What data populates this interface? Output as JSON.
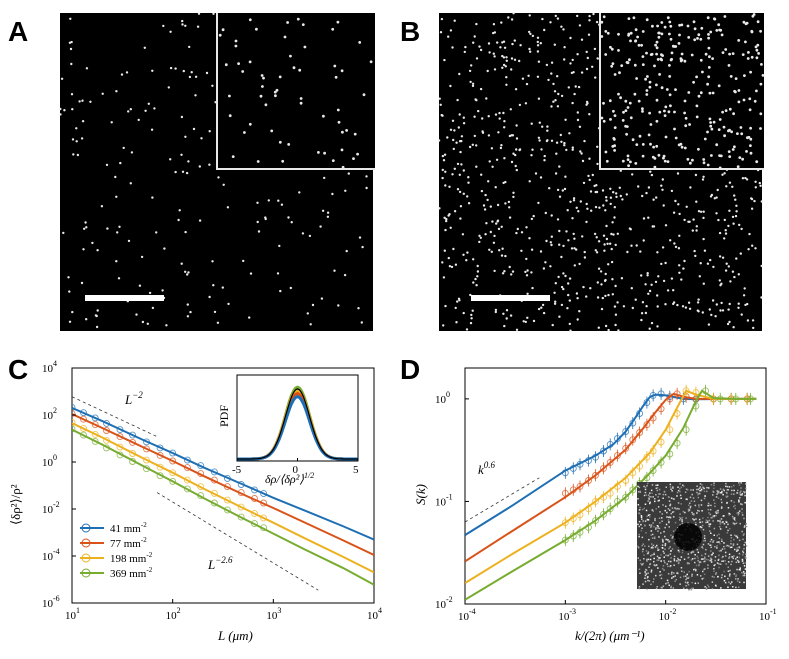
{
  "panels": {
    "A": {
      "label": "A",
      "density_seed": 17,
      "dot_count": 230,
      "inset_dot_count": 60
    },
    "B": {
      "label": "B",
      "density_seed": 91,
      "dot_count": 950,
      "inset_dot_count": 300
    },
    "C": {
      "label": "C"
    },
    "D": {
      "label": "D"
    }
  },
  "colors": {
    "blue": "#1f6fb4",
    "red": "#d95319",
    "yellow": "#edb120",
    "green": "#77ac30"
  },
  "chart_data": [
    {
      "id": "C",
      "type": "line",
      "xscale": "log",
      "yscale": "log",
      "xlim": [
        10,
        10000
      ],
      "ylim": [
        1e-06,
        10000
      ],
      "xlabel": "L (μm)",
      "ylabel": "⟨δρ²⟩/ρ²",
      "xticks": [
        10,
        100,
        1000,
        10000
      ],
      "xtick_labels": [
        "10",
        "10",
        "10",
        "10"
      ],
      "xtick_exps": [
        "1",
        "2",
        "3",
        "4"
      ],
      "yticks": [
        1e-06,
        0.0001,
        0.01,
        1,
        100,
        10000
      ],
      "ytick_labels": [
        "10",
        "10",
        "10",
        "10",
        "10",
        "10"
      ],
      "ytick_exps": [
        "-6",
        "-4",
        "-2",
        "0",
        "2",
        "4"
      ],
      "annotations": [
        {
          "base": "L",
          "exp": "−2"
        },
        {
          "base": "L",
          "exp": "−2.6"
        }
      ],
      "guide_lines": [
        {
          "x": [
            10,
            70
          ],
          "y": [
            600,
            12
          ]
        },
        {
          "x": [
            70,
            2800
          ],
          "y": [
            0.05,
            3.5e-06
          ]
        }
      ],
      "legend": [
        "41 mm",
        "77 mm",
        "198 mm",
        "369 mm"
      ],
      "legend_exp": "-2",
      "legend_position": "bottom-left",
      "series": [
        {
          "name": "41 mm-2",
          "color_key": "blue",
          "x": [
            10,
            20,
            50,
            100,
            200,
            500,
            1000,
            2000,
            5000,
            10000
          ],
          "y": [
            200,
            55,
            9,
            2.4,
            0.6,
            0.11,
            0.03,
            0.009,
            0.0018,
            0.0005
          ],
          "marker_x": [
            10,
            13,
            17,
            22,
            30,
            40,
            55,
            75,
            100,
            140,
            190,
            260,
            350,
            480,
            650,
            800
          ],
          "marker_y": [
            210,
            125,
            75,
            44,
            24,
            14,
            7.2,
            4,
            2.4,
            1.2,
            0.7,
            0.38,
            0.2,
            0.11,
            0.065,
            0.045
          ]
        },
        {
          "name": "77 mm-2",
          "color_key": "red",
          "x": [
            10,
            20,
            50,
            100,
            200,
            500,
            1000,
            2000,
            5000,
            10000
          ],
          "y": [
            110,
            28,
            4.4,
            1.1,
            0.26,
            0.042,
            0.011,
            0.0028,
            0.00045,
            0.00011
          ],
          "marker_x": [
            10,
            13,
            17,
            22,
            30,
            40,
            55,
            75,
            100,
            140,
            190,
            260,
            350,
            480,
            650,
            800
          ],
          "marker_y": [
            115,
            66,
            39,
            22,
            12,
            6.8,
            3.6,
            1.9,
            1.1,
            0.58,
            0.32,
            0.17,
            0.09,
            0.05,
            0.028,
            0.018
          ]
        },
        {
          "name": "198 mm-2",
          "color_key": "yellow",
          "x": [
            10,
            20,
            50,
            100,
            200,
            500,
            1000,
            2000,
            5000,
            10000
          ],
          "y": [
            45,
            11,
            1.5,
            0.35,
            0.075,
            0.011,
            0.0026,
            0.0006,
            9e-05,
            2e-05
          ],
          "marker_x": [
            10,
            13,
            17,
            22,
            30,
            40,
            55,
            75,
            100,
            140,
            190,
            260,
            350,
            480,
            650,
            800
          ],
          "marker_y": [
            48,
            27,
            15,
            8.3,
            4.3,
            2.3,
            1.2,
            0.6,
            0.35,
            0.17,
            0.09,
            0.046,
            0.024,
            0.012,
            0.0065,
            0.0042
          ]
        },
        {
          "name": "369 mm-2",
          "color_key": "green",
          "x": [
            10,
            20,
            50,
            100,
            200,
            500,
            1000,
            2000,
            5000,
            10000
          ],
          "y": [
            24,
            5.5,
            0.7,
            0.15,
            0.03,
            0.004,
            0.0009,
            0.0002,
            3e-05,
            6e-06
          ],
          "marker_x": [
            10,
            13,
            17,
            22,
            30,
            40,
            55,
            75,
            100,
            140,
            190,
            260,
            350,
            480,
            650,
            800
          ],
          "marker_y": [
            25,
            14,
            7.5,
            4,
            2,
            1.05,
            0.52,
            0.26,
            0.15,
            0.072,
            0.037,
            0.018,
            0.0092,
            0.0045,
            0.0024,
            0.0016
          ]
        }
      ],
      "inset": {
        "type": "line",
        "ylabel": "PDF",
        "xlabel": "δρ/⟨δρ²⟩",
        "xlabel_exp": "1/2",
        "xlim": [
          -5,
          5
        ],
        "xticks": [
          -5,
          0,
          5
        ],
        "xtick_labels": [
          "-5",
          "0",
          "5"
        ]
      }
    },
    {
      "id": "D",
      "type": "line",
      "xscale": "log",
      "yscale": "log",
      "xlim": [
        0.0001,
        0.1
      ],
      "ylim": [
        0.01,
        2
      ],
      "xlabel": "k/(2π) (μm⁻¹)",
      "ylabel": "S(k)",
      "xticks": [
        0.0001,
        0.001,
        0.01,
        0.1
      ],
      "xtick_labels": [
        "10",
        "10",
        "10",
        "10"
      ],
      "xtick_exps": [
        "-4",
        "-3",
        "-2",
        "-1"
      ],
      "yticks": [
        0.01,
        0.1,
        1
      ],
      "ytick_labels": [
        "10",
        "10",
        "10"
      ],
      "ytick_exps": [
        "-2",
        "-1",
        "0"
      ],
      "annotations": [
        {
          "base": "k",
          "exp": "0.6"
        }
      ],
      "guide_lines": [
        {
          "x": [
            0.0001,
            0.00055
          ],
          "y": [
            0.063,
            0.17
          ]
        }
      ],
      "series": [
        {
          "name": "41 mm-2",
          "color_key": "blue",
          "x": [
            0.0001,
            0.0003,
            0.001,
            0.002,
            0.003,
            0.004,
            0.005,
            0.006,
            0.007,
            0.008,
            0.01,
            0.015,
            0.02,
            0.05,
            0.08
          ],
          "y": [
            0.047,
            0.092,
            0.2,
            0.28,
            0.36,
            0.48,
            0.66,
            0.86,
            1.05,
            1.1,
            1.08,
            1.0,
            0.99,
            1.0,
            1.0
          ],
          "marker_x": [
            0.001,
            0.0012,
            0.0014,
            0.0017,
            0.002,
            0.0024,
            0.0028,
            0.0033,
            0.004,
            0.0047,
            0.0055,
            0.0065,
            0.0075,
            0.009,
            0.011,
            0.015,
            0.02,
            0.03,
            0.045,
            0.065
          ],
          "marker_y": [
            0.19,
            0.21,
            0.23,
            0.25,
            0.27,
            0.31,
            0.36,
            0.41,
            0.48,
            0.58,
            0.72,
            0.92,
            1.08,
            1.12,
            1.05,
            1.0,
            0.99,
            1.0,
            1.0,
            1.0
          ]
        },
        {
          "name": "77 mm-2",
          "color_key": "red",
          "x": [
            0.0001,
            0.0003,
            0.001,
            0.002,
            0.004,
            0.006,
            0.008,
            0.01,
            0.012,
            0.015,
            0.02,
            0.05,
            0.08
          ],
          "y": [
            0.026,
            0.052,
            0.11,
            0.18,
            0.32,
            0.52,
            0.75,
            0.98,
            1.12,
            1.05,
            1.0,
            1.0,
            1.0
          ],
          "marker_x": [
            0.001,
            0.0012,
            0.0014,
            0.0017,
            0.002,
            0.0024,
            0.0028,
            0.0033,
            0.004,
            0.0047,
            0.0055,
            0.0065,
            0.0075,
            0.009,
            0.011,
            0.013,
            0.016,
            0.02,
            0.03,
            0.045,
            0.065
          ],
          "marker_y": [
            0.12,
            0.13,
            0.14,
            0.16,
            0.18,
            0.21,
            0.24,
            0.28,
            0.33,
            0.4,
            0.47,
            0.56,
            0.65,
            0.8,
            1.0,
            1.12,
            1.05,
            1.0,
            1.0,
            1.0,
            1.0
          ]
        },
        {
          "name": "198 mm-2",
          "color_key": "yellow",
          "x": [
            0.0001,
            0.0003,
            0.001,
            0.002,
            0.004,
            0.007,
            0.01,
            0.013,
            0.016,
            0.02,
            0.03,
            0.05,
            0.08
          ],
          "y": [
            0.016,
            0.031,
            0.062,
            0.1,
            0.17,
            0.3,
            0.5,
            0.82,
            1.2,
            1.1,
            1.0,
            1.0,
            1.0
          ],
          "marker_x": [
            0.001,
            0.0012,
            0.0014,
            0.0017,
            0.002,
            0.0024,
            0.0028,
            0.0033,
            0.004,
            0.0047,
            0.0055,
            0.0065,
            0.0075,
            0.009,
            0.011,
            0.013,
            0.016,
            0.02,
            0.03,
            0.045,
            0.065
          ],
          "marker_y": [
            0.062,
            0.068,
            0.074,
            0.085,
            0.1,
            0.11,
            0.12,
            0.14,
            0.16,
            0.19,
            0.22,
            0.27,
            0.31,
            0.38,
            0.5,
            0.72,
            1.2,
            1.15,
            1.0,
            1.0,
            1.0
          ]
        },
        {
          "name": "369 mm-2",
          "color_key": "green",
          "x": [
            0.0001,
            0.0003,
            0.001,
            0.002,
            0.004,
            0.007,
            0.01,
            0.015,
            0.02,
            0.023,
            0.03,
            0.05,
            0.08
          ],
          "y": [
            0.011,
            0.021,
            0.042,
            0.065,
            0.11,
            0.19,
            0.28,
            0.52,
            0.95,
            1.2,
            1.02,
            1.0,
            1.0
          ],
          "marker_x": [
            0.001,
            0.0012,
            0.0014,
            0.0017,
            0.002,
            0.0024,
            0.0028,
            0.0033,
            0.004,
            0.0047,
            0.0055,
            0.0065,
            0.0075,
            0.009,
            0.011,
            0.013,
            0.016,
            0.02,
            0.025,
            0.035,
            0.05,
            0.07
          ],
          "marker_y": [
            0.042,
            0.046,
            0.05,
            0.056,
            0.065,
            0.075,
            0.085,
            0.1,
            0.11,
            0.13,
            0.15,
            0.17,
            0.2,
            0.24,
            0.29,
            0.37,
            0.5,
            0.85,
            1.2,
            1.0,
            1.0,
            1.0
          ]
        }
      ]
    }
  ]
}
